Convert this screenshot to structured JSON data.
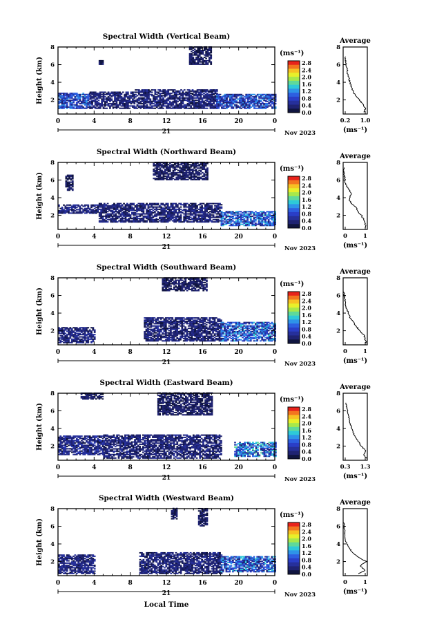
{
  "figure": {
    "xlabel": "Local Time",
    "date_label": "Nov 2023",
    "day_label": "21",
    "ylabel": "Height (km)",
    "cbar_unit": "(ms⁻¹)",
    "avg_title": "Average",
    "avg_xlabel": "(ms⁻¹)",
    "cbar_ticks": [
      "2.8",
      "2.4",
      "2.0",
      "1.6",
      "1.2",
      "0.8",
      "0.4",
      "0.0"
    ],
    "cbar_colors": [
      "#e8231b",
      "#f3751f",
      "#f7c123",
      "#e8f02a",
      "#a8e84a",
      "#5fd99a",
      "#2ec9d8",
      "#2e94e8",
      "#2d5fe0",
      "#2a3ec7",
      "#26309b",
      "#1f2372",
      "#101540"
    ]
  },
  "chart_data": [
    {
      "type": "heatmap",
      "title": "Spectral Width (Vertical Beam)",
      "xlabel": "Local Time",
      "ylabel": "Height (km)",
      "xlim": [
        0,
        24
      ],
      "ylim": [
        0.4,
        8
      ],
      "xticks": [
        "0",
        "4",
        "8",
        "12",
        "16",
        "20",
        "0"
      ],
      "yticks": [
        "2",
        "4",
        "6",
        "8"
      ],
      "colorbar": {
        "label": "(ms⁻¹)",
        "range": [
          0,
          2.8
        ]
      },
      "cells": [
        {
          "t0": 0.0,
          "t1": 3.5,
          "h0": 1.0,
          "h1": 2.8,
          "v": 0.7
        },
        {
          "t0": 3.5,
          "t1": 8.5,
          "h0": 1.0,
          "h1": 2.9,
          "v": 0.25
        },
        {
          "t0": 8.5,
          "t1": 17.5,
          "h0": 1.0,
          "h1": 3.1,
          "v": 0.25
        },
        {
          "t0": 17.5,
          "t1": 24.0,
          "h0": 1.0,
          "h1": 2.6,
          "v": 0.7
        },
        {
          "t0": 14.5,
          "t1": 17.0,
          "h0": 6.0,
          "h1": 8.0,
          "v": 0.15
        },
        {
          "t0": 4.5,
          "t1": 5.0,
          "h0": 6.0,
          "h1": 6.5,
          "v": 0.15
        }
      ],
      "average": {
        "title": "Average",
        "xlabel": "(ms⁻¹)",
        "xlim": [
          0,
          1.2
        ],
        "xticks": [
          "0.2",
          "1.0"
        ],
        "ylim": [
          0.4,
          8
        ],
        "yticks": [
          "2",
          "4",
          "6",
          "8"
        ],
        "height": [
          0.6,
          1.0,
          1.5,
          2.0,
          2.5,
          3.0,
          3.5,
          4.0,
          4.5,
          5.0,
          5.5,
          6.0,
          6.5,
          7.0
        ],
        "value": [
          1.05,
          1.1,
          1.0,
          0.8,
          0.6,
          0.5,
          0.4,
          0.33,
          0.28,
          0.22,
          0.2,
          0.15,
          0.12,
          0.1
        ]
      }
    },
    {
      "type": "heatmap",
      "title": "Spectral Width (Northward Beam)",
      "xlabel": "Local Time",
      "ylabel": "Height (km)",
      "xlim": [
        0,
        24
      ],
      "ylim": [
        0.4,
        8
      ],
      "xticks": [
        "0",
        "4",
        "8",
        "12",
        "16",
        "20",
        "0"
      ],
      "yticks": [
        "2",
        "4",
        "6",
        "8"
      ],
      "colorbar": {
        "label": "(ms⁻¹)",
        "range": [
          0,
          2.8
        ]
      },
      "cells": [
        {
          "t0": 0.0,
          "t1": 4.5,
          "h0": 2.2,
          "h1": 3.2,
          "v": 0.3
        },
        {
          "t0": 4.5,
          "t1": 18.0,
          "h0": 1.2,
          "h1": 3.3,
          "v": 0.25
        },
        {
          "t0": 18.0,
          "t1": 24.0,
          "h0": 0.8,
          "h1": 2.4,
          "v": 0.8
        },
        {
          "t0": 10.5,
          "t1": 16.5,
          "h0": 6.0,
          "h1": 8.0,
          "v": 0.15
        },
        {
          "t0": 0.8,
          "t1": 1.6,
          "h0": 4.8,
          "h1": 6.5,
          "v": 0.15
        }
      ],
      "average": {
        "title": "Average",
        "xlabel": "(ms⁻¹)",
        "xlim": [
          0,
          1
        ],
        "xticks": [
          "0",
          "1"
        ],
        "ylim": [
          0.4,
          8
        ],
        "yticks": [
          "2",
          "4",
          "6",
          "8"
        ],
        "height": [
          0.6,
          1.0,
          1.5,
          2.0,
          2.5,
          3.0,
          3.5,
          4.0,
          4.5,
          5.0,
          5.5,
          6.0,
          6.5,
          7.0,
          7.5
        ],
        "value": [
          0.95,
          0.9,
          0.85,
          0.75,
          0.6,
          0.5,
          0.3,
          0.25,
          0.35,
          0.2,
          0.1,
          0.08,
          0.05,
          0.02,
          0.02
        ]
      }
    },
    {
      "type": "heatmap",
      "title": "Spectral Width (Southward Beam)",
      "xlabel": "Local Time",
      "ylabel": "Height (km)",
      "xlim": [
        0,
        24
      ],
      "ylim": [
        0.4,
        8
      ],
      "xticks": [
        "0",
        "4",
        "8",
        "12",
        "16",
        "20",
        "0"
      ],
      "yticks": [
        "2",
        "4",
        "6",
        "8"
      ],
      "colorbar": {
        "label": "(ms⁻¹)",
        "range": [
          0,
          2.8
        ]
      },
      "cells": [
        {
          "t0": 0.0,
          "t1": 4.0,
          "h0": 0.6,
          "h1": 2.4,
          "v": 0.3
        },
        {
          "t0": 9.5,
          "t1": 18.0,
          "h0": 0.8,
          "h1": 3.4,
          "v": 0.25
        },
        {
          "t0": 18.0,
          "t1": 24.0,
          "h0": 0.8,
          "h1": 3.0,
          "v": 0.8
        },
        {
          "t0": 11.5,
          "t1": 16.5,
          "h0": 6.5,
          "h1": 8.0,
          "v": 0.15
        }
      ],
      "average": {
        "title": "Average",
        "xlabel": "(ms⁻¹)",
        "xlim": [
          0,
          1.1
        ],
        "xticks": [
          "0",
          "1"
        ],
        "ylim": [
          0.4,
          8
        ],
        "yticks": [
          "2",
          "4",
          "6",
          "8"
        ],
        "height": [
          0.6,
          1.0,
          1.5,
          2.0,
          2.5,
          3.0,
          3.5,
          4.0,
          4.5,
          5.0,
          5.5,
          6.0,
          6.5
        ],
        "value": [
          1.05,
          1.0,
          0.95,
          0.75,
          0.6,
          0.45,
          0.3,
          0.25,
          0.15,
          0.12,
          0.08,
          0.05,
          0.02
        ]
      }
    },
    {
      "type": "heatmap",
      "title": "Spectral Width (Eastward Beam)",
      "xlabel": "Local Time",
      "ylabel": "Height (km)",
      "xlim": [
        0,
        24
      ],
      "ylim": [
        0.4,
        8
      ],
      "xticks": [
        "0",
        "4",
        "8",
        "12",
        "16",
        "20",
        "0"
      ],
      "yticks": [
        "2",
        "4",
        "6",
        "8"
      ],
      "colorbar": {
        "label": "(ms⁻¹)",
        "range": [
          0,
          2.8
        ]
      },
      "cells": [
        {
          "t0": 0.0,
          "t1": 5.0,
          "h0": 1.0,
          "h1": 3.2,
          "v": 0.35
        },
        {
          "t0": 5.0,
          "t1": 18.0,
          "h0": 0.6,
          "h1": 3.2,
          "v": 0.25
        },
        {
          "t0": 19.5,
          "t1": 24.0,
          "h0": 0.8,
          "h1": 2.4,
          "v": 0.9
        },
        {
          "t0": 11.0,
          "t1": 17.0,
          "h0": 5.5,
          "h1": 8.0,
          "v": 0.15
        },
        {
          "t0": 2.5,
          "t1": 5.0,
          "h0": 7.3,
          "h1": 8.0,
          "v": 0.15
        }
      ],
      "average": {
        "title": "Average",
        "xlabel": "(ms⁻¹)",
        "xlim": [
          0,
          1.4
        ],
        "xticks": [
          "0.3",
          "1.3"
        ],
        "ylim": [
          0.4,
          8
        ],
        "yticks": [
          "2",
          "4",
          "6",
          "8"
        ],
        "height": [
          0.6,
          1.0,
          1.5,
          2.0,
          2.5,
          3.0,
          3.5,
          4.0,
          4.5,
          5.0,
          5.5,
          6.0,
          6.5,
          7.0
        ],
        "value": [
          1.35,
          1.2,
          1.3,
          1.05,
          0.9,
          0.7,
          0.6,
          0.5,
          0.4,
          0.35,
          0.3,
          0.25,
          0.2,
          0.15
        ]
      }
    },
    {
      "type": "heatmap",
      "title": "Spectral Width (Westward Beam)",
      "xlabel": "Local Time",
      "ylabel": "Height (km)",
      "xlim": [
        0,
        24
      ],
      "ylim": [
        0.4,
        8
      ],
      "xticks": [
        "0",
        "4",
        "8",
        "12",
        "16",
        "20",
        "0"
      ],
      "yticks": [
        "2",
        "4",
        "6",
        "8"
      ],
      "colorbar": {
        "label": "(ms⁻¹)",
        "range": [
          0,
          2.8
        ]
      },
      "cells": [
        {
          "t0": 0.0,
          "t1": 4.0,
          "h0": 0.6,
          "h1": 2.8,
          "v": 0.3
        },
        {
          "t0": 9.0,
          "t1": 18.0,
          "h0": 0.6,
          "h1": 3.0,
          "v": 0.25
        },
        {
          "t0": 18.0,
          "t1": 24.0,
          "h0": 0.8,
          "h1": 2.6,
          "v": 0.8
        },
        {
          "t0": 15.5,
          "t1": 16.5,
          "h0": 6.0,
          "h1": 8.0,
          "v": 0.15
        },
        {
          "t0": 12.5,
          "t1": 13.2,
          "h0": 6.8,
          "h1": 8.0,
          "v": 0.15
        }
      ],
      "average": {
        "title": "Average",
        "xlabel": "(ms⁻¹)",
        "xlim": [
          0,
          1.3
        ],
        "xticks": [
          "0",
          "1"
        ],
        "ylim": [
          0.4,
          8
        ],
        "yticks": [
          "2",
          "4",
          "6",
          "8"
        ],
        "height": [
          0.6,
          1.0,
          1.5,
          2.0,
          2.5,
          3.0,
          3.5,
          4.0,
          4.5,
          5.0,
          5.5,
          6.0,
          6.5
        ],
        "value": [
          0.8,
          1.2,
          0.9,
          1.25,
          0.8,
          0.5,
          0.35,
          0.2,
          0.12,
          0.1,
          0.08,
          0.05,
          0.03
        ]
      }
    }
  ]
}
